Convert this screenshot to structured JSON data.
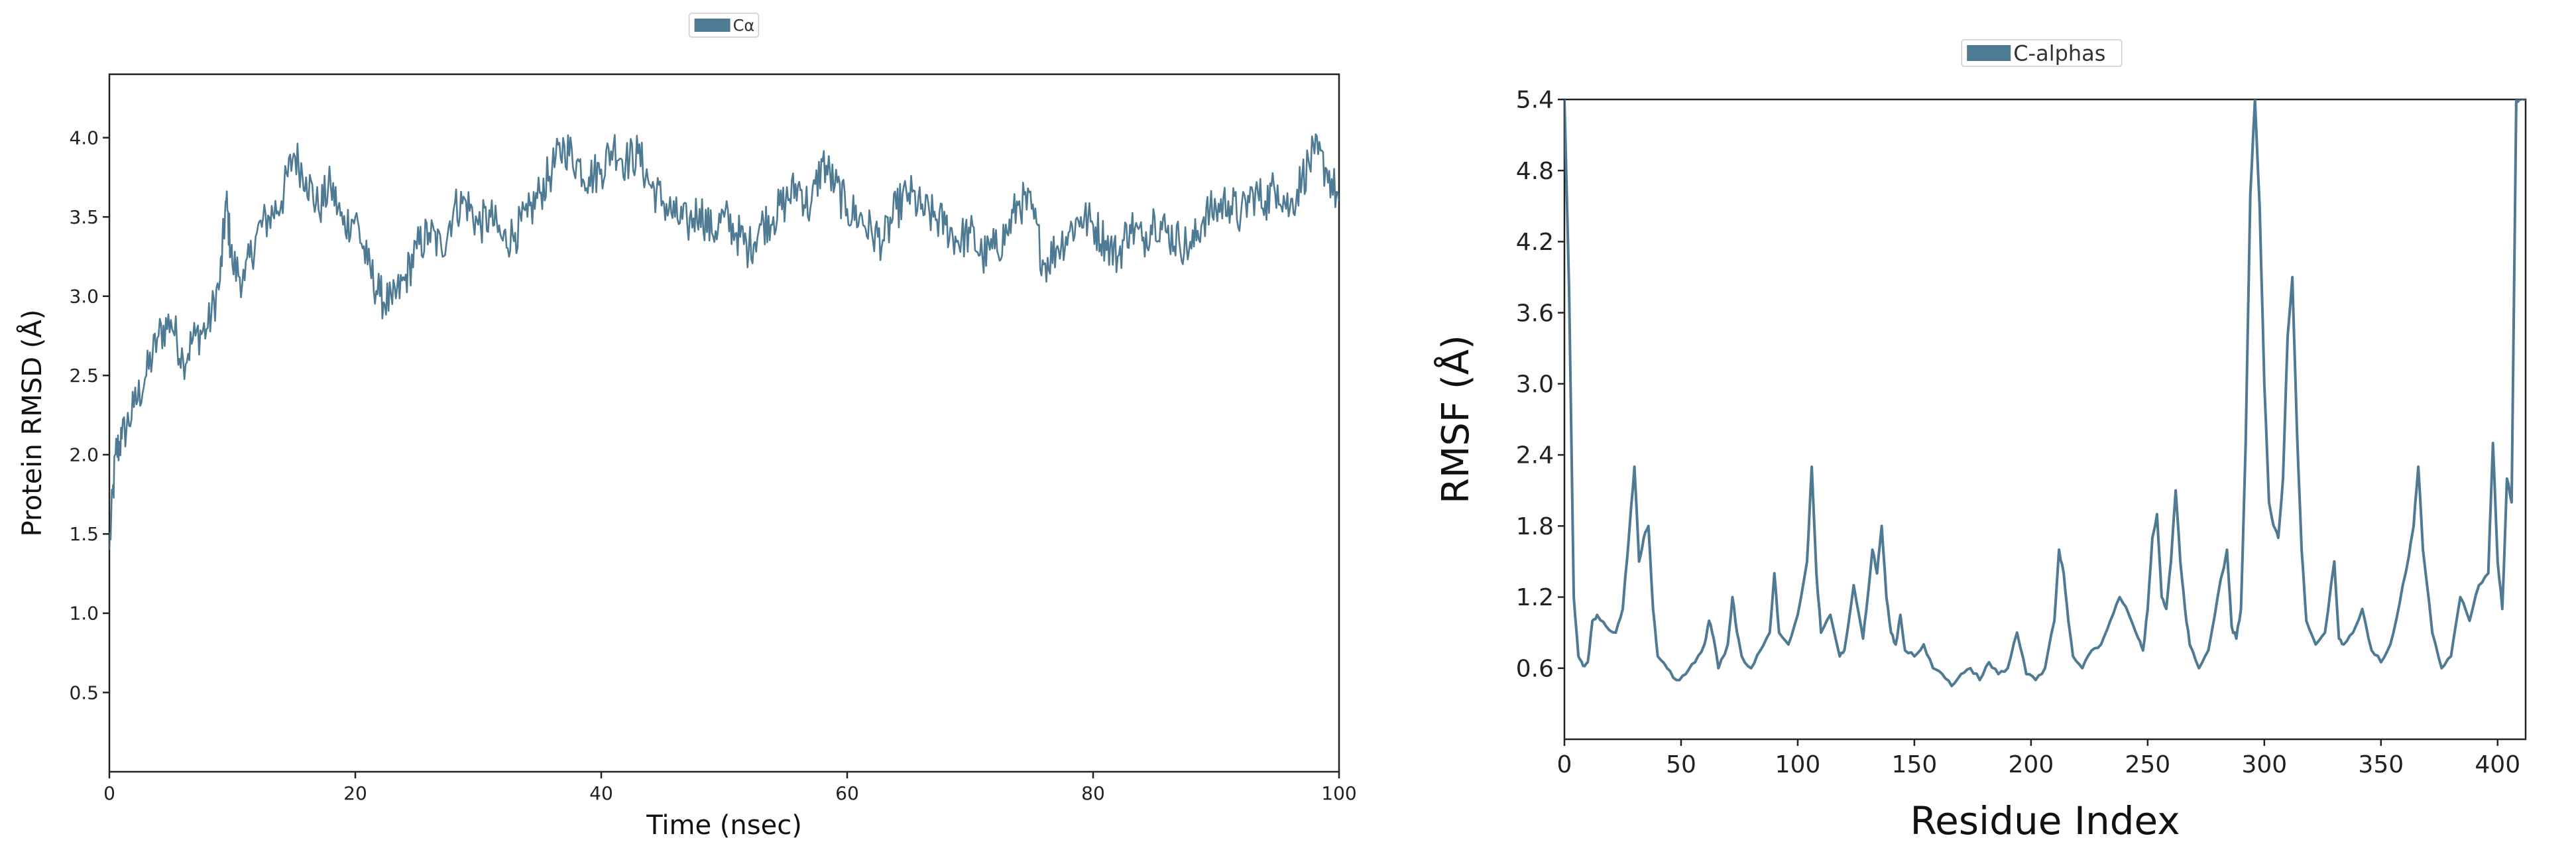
{
  "colors": {
    "series": "#4e7a93",
    "axis": "#222222",
    "background": "#ffffff"
  },
  "chart_data": [
    {
      "type": "line",
      "title": "",
      "xlabel": "Time (nsec)",
      "ylabel": "Protein RMSD (Å)",
      "xlim": [
        0,
        100
      ],
      "ylim": [
        0,
        4.4
      ],
      "xticks": [
        "0",
        "20",
        "40",
        "60",
        "80",
        "100"
      ],
      "yticks": [
        "0.5",
        "1.0",
        "1.5",
        "2.0",
        "2.5",
        "3.0",
        "3.5",
        "4.0"
      ],
      "grid": false,
      "legend_position": "top-center",
      "series": [
        {
          "name": "Cα",
          "x": [
            0,
            0.5,
            1,
            2,
            3,
            4,
            5,
            6,
            7,
            8,
            9,
            9.5,
            10,
            11,
            12,
            13,
            14,
            15,
            16,
            17,
            18,
            19,
            20,
            21,
            22,
            23,
            24,
            25,
            26,
            27,
            28,
            29,
            30,
            31,
            32,
            33,
            34,
            35,
            36,
            37,
            38,
            39,
            40,
            41,
            42,
            43,
            44,
            45,
            46,
            47,
            48,
            49,
            50,
            51,
            52,
            53,
            54,
            55,
            56,
            57,
            58,
            59,
            60,
            61,
            62,
            63,
            64,
            65,
            66,
            67,
            68,
            69,
            70,
            71,
            72,
            73,
            74,
            75,
            76,
            77,
            78,
            79,
            80,
            81,
            82,
            83,
            84,
            85,
            86,
            87,
            88,
            89,
            90,
            91,
            92,
            93,
            94,
            95,
            96,
            97,
            98,
            99,
            100
          ],
          "values": [
            1.4,
            2.0,
            2.1,
            2.3,
            2.5,
            2.75,
            2.85,
            2.6,
            2.75,
            2.8,
            3.1,
            3.6,
            3.2,
            3.1,
            3.4,
            3.5,
            3.6,
            3.9,
            3.75,
            3.55,
            3.7,
            3.45,
            3.5,
            3.2,
            3.0,
            2.95,
            3.1,
            3.3,
            3.4,
            3.3,
            3.55,
            3.6,
            3.45,
            3.5,
            3.35,
            3.4,
            3.5,
            3.65,
            3.8,
            3.95,
            3.85,
            3.75,
            3.8,
            3.95,
            3.85,
            3.9,
            3.7,
            3.6,
            3.5,
            3.45,
            3.55,
            3.4,
            3.5,
            3.4,
            3.3,
            3.45,
            3.5,
            3.6,
            3.7,
            3.55,
            3.85,
            3.7,
            3.55,
            3.5,
            3.4,
            3.35,
            3.55,
            3.65,
            3.55,
            3.5,
            3.45,
            3.35,
            3.4,
            3.25,
            3.3,
            3.4,
            3.6,
            3.55,
            3.2,
            3.3,
            3.4,
            3.5,
            3.45,
            3.35,
            3.25,
            3.45,
            3.35,
            3.5,
            3.4,
            3.35,
            3.3,
            3.5,
            3.55,
            3.6,
            3.5,
            3.65,
            3.6,
            3.7,
            3.55,
            3.75,
            3.9,
            3.8,
            3.6
          ]
        }
      ]
    },
    {
      "type": "line",
      "title": "",
      "xlabel": "Residue Index",
      "ylabel": "RMSF (Å)",
      "xlim": [
        0,
        412
      ],
      "ylim": [
        0,
        5.4
      ],
      "xticks": [
        "0",
        "50",
        "100",
        "150",
        "200",
        "250",
        "300",
        "350",
        "400"
      ],
      "yticks": [
        "0.6",
        "1.2",
        "1.8",
        "2.4",
        "3.0",
        "3.6",
        "4.2",
        "4.8",
        "5.4"
      ],
      "grid": false,
      "legend_position": "top-center",
      "series": [
        {
          "name": "C-alphas",
          "x": [
            0,
            2,
            4,
            6,
            8,
            10,
            12,
            14,
            18,
            22,
            25,
            28,
            30,
            32,
            34,
            36,
            38,
            40,
            44,
            48,
            52,
            56,
            60,
            62,
            64,
            66,
            70,
            72,
            74,
            76,
            80,
            84,
            88,
            90,
            92,
            96,
            100,
            104,
            106,
            108,
            110,
            114,
            118,
            120,
            124,
            128,
            130,
            132,
            134,
            136,
            138,
            140,
            142,
            144,
            146,
            150,
            154,
            158,
            162,
            166,
            170,
            174,
            178,
            182,
            186,
            190,
            194,
            198,
            202,
            206,
            210,
            212,
            214,
            216,
            218,
            222,
            226,
            230,
            234,
            238,
            242,
            246,
            248,
            250,
            252,
            254,
            256,
            258,
            260,
            262,
            264,
            266,
            268,
            272,
            276,
            280,
            284,
            286,
            288,
            290,
            292,
            294,
            296,
            298,
            300,
            302,
            304,
            306,
            308,
            310,
            312,
            314,
            316,
            318,
            322,
            326,
            330,
            332,
            334,
            338,
            342,
            346,
            350,
            354,
            358,
            362,
            364,
            366,
            368,
            372,
            376,
            380,
            384,
            388,
            392,
            396,
            398,
            400,
            402,
            404,
            406,
            408,
            410,
            412
          ],
          "values": [
            5.4,
            3.8,
            1.2,
            0.7,
            0.62,
            0.65,
            1.0,
            1.05,
            0.95,
            0.9,
            1.1,
            1.8,
            2.3,
            1.5,
            1.7,
            1.8,
            1.1,
            0.7,
            0.6,
            0.5,
            0.55,
            0.65,
            0.8,
            1.0,
            0.85,
            0.6,
            0.8,
            1.2,
            0.9,
            0.7,
            0.6,
            0.75,
            0.9,
            1.4,
            0.9,
            0.8,
            1.05,
            1.5,
            2.3,
            1.4,
            0.9,
            1.05,
            0.7,
            0.75,
            1.3,
            0.85,
            1.2,
            1.6,
            1.4,
            1.8,
            1.2,
            0.9,
            0.8,
            1.05,
            0.75,
            0.7,
            0.8,
            0.6,
            0.55,
            0.45,
            0.55,
            0.6,
            0.5,
            0.65,
            0.55,
            0.6,
            0.9,
            0.55,
            0.5,
            0.6,
            1.0,
            1.6,
            1.4,
            1.0,
            0.7,
            0.6,
            0.75,
            0.8,
            1.0,
            1.2,
            1.05,
            0.85,
            0.75,
            1.1,
            1.7,
            1.9,
            1.2,
            1.1,
            1.5,
            2.1,
            1.5,
            1.1,
            0.8,
            0.6,
            0.75,
            1.2,
            1.6,
            0.95,
            0.85,
            1.1,
            2.5,
            4.6,
            5.4,
            4.5,
            3.0,
            2.0,
            1.8,
            1.7,
            2.2,
            3.4,
            3.9,
            2.6,
            1.6,
            1.0,
            0.8,
            0.9,
            1.5,
            0.85,
            0.8,
            0.9,
            1.1,
            0.75,
            0.65,
            0.8,
            1.15,
            1.55,
            1.8,
            2.3,
            1.6,
            0.9,
            0.6,
            0.7,
            1.2,
            1.0,
            1.3,
            1.4,
            2.5,
            1.5,
            1.1,
            2.2,
            2.0,
            5.4,
            5.4,
            5.4
          ]
        }
      ]
    }
  ]
}
